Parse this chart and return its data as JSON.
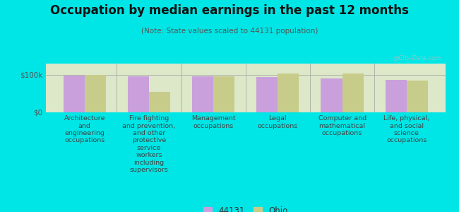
{
  "title": "Occupation by median earnings in the past 12 months",
  "subtitle": "(Note: State values scaled to 44131 population)",
  "categories": [
    "Architecture\nand\nengineering\noccupations",
    "Fire fighting\nand prevention,\nand other\nprotective\nservice\nworkers\nincluding\nsupervisors",
    "Management\noccupations",
    "Legal\noccupations",
    "Computer and\nmathematical\noccupations",
    "Life, physical,\nand social\nscience\noccupations"
  ],
  "values_44131": [
    98000,
    97000,
    96000,
    94000,
    90000,
    87000
  ],
  "values_ohio": [
    99000,
    55000,
    97000,
    103000,
    103000,
    85000
  ],
  "color_44131": "#c9a0dc",
  "color_ohio": "#c8cc8a",
  "background_color": "#00e5e5",
  "plot_bg_color": "#dce8c8",
  "ytick_labels": [
    "$0",
    "$100k"
  ],
  "ytick_values": [
    0,
    100000
  ],
  "bar_width": 0.33,
  "legend_label_44131": "44131",
  "legend_label_ohio": "Ohio",
  "watermark": "@City-Data.com",
  "ylim": [
    0,
    130000
  ]
}
